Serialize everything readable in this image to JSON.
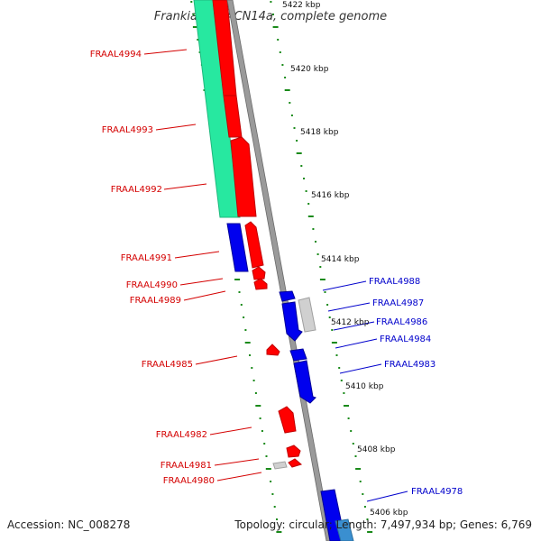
{
  "title": "Frankia alni ACN14a, complete genome",
  "footer": {
    "accession": "Accession: NC_008278",
    "topology": "Topology: circular; Length: 7,497,934 bp; Genes: 6,769"
  },
  "colors": {
    "left_gene": "#d40000",
    "right_gene": "#0000cc",
    "forward_cds": "#ff0000",
    "reverse_cds": "#0000ee",
    "other_feature": "#c8c8c8",
    "rrna_feature": "#27e8a0",
    "scale_ticks": "#1a8a1a",
    "backbone": "#8c8c8c"
  },
  "scale": {
    "unit": "kbp",
    "ticks": [
      "5422 kbp",
      "5420 kbp",
      "5418 kbp",
      "5416 kbp",
      "5414 kbp",
      "5412 kbp",
      "5410 kbp",
      "5408 kbp",
      "5406 kbp"
    ]
  },
  "genes_left": [
    "FRAAL4994",
    "FRAAL4993",
    "FRAAL4992",
    "FRAAL4991",
    "FRAAL4990",
    "FRAAL4989",
    "FRAAL4985",
    "FRAAL4982",
    "FRAAL4981",
    "FRAAL4980"
  ],
  "genes_right": [
    "FRAAL4988",
    "FRAAL4987",
    "FRAAL4986",
    "FRAAL4984",
    "FRAAL4983",
    "FRAAL4978"
  ]
}
